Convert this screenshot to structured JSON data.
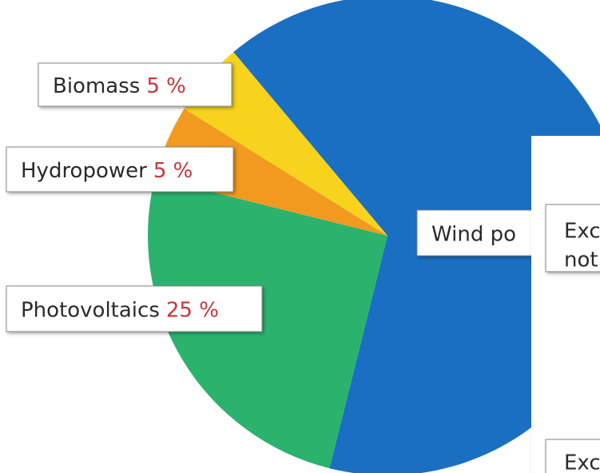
{
  "chart_data": {
    "type": "pie",
    "categories": [
      "Wind po",
      "Photovoltaics",
      "Hydropower",
      "Biomass"
    ],
    "values": [
      65,
      25,
      5,
      5
    ],
    "value_labels": [
      null,
      "25 %",
      "5 %",
      "5 %"
    ],
    "colors": [
      "#1b6fc2",
      "#2bb36e",
      "#f29a1f",
      "#f7d31e"
    ]
  },
  "panel": {
    "box_lines": [
      "Exc",
      "not"
    ],
    "bottom_box": "Exc"
  }
}
